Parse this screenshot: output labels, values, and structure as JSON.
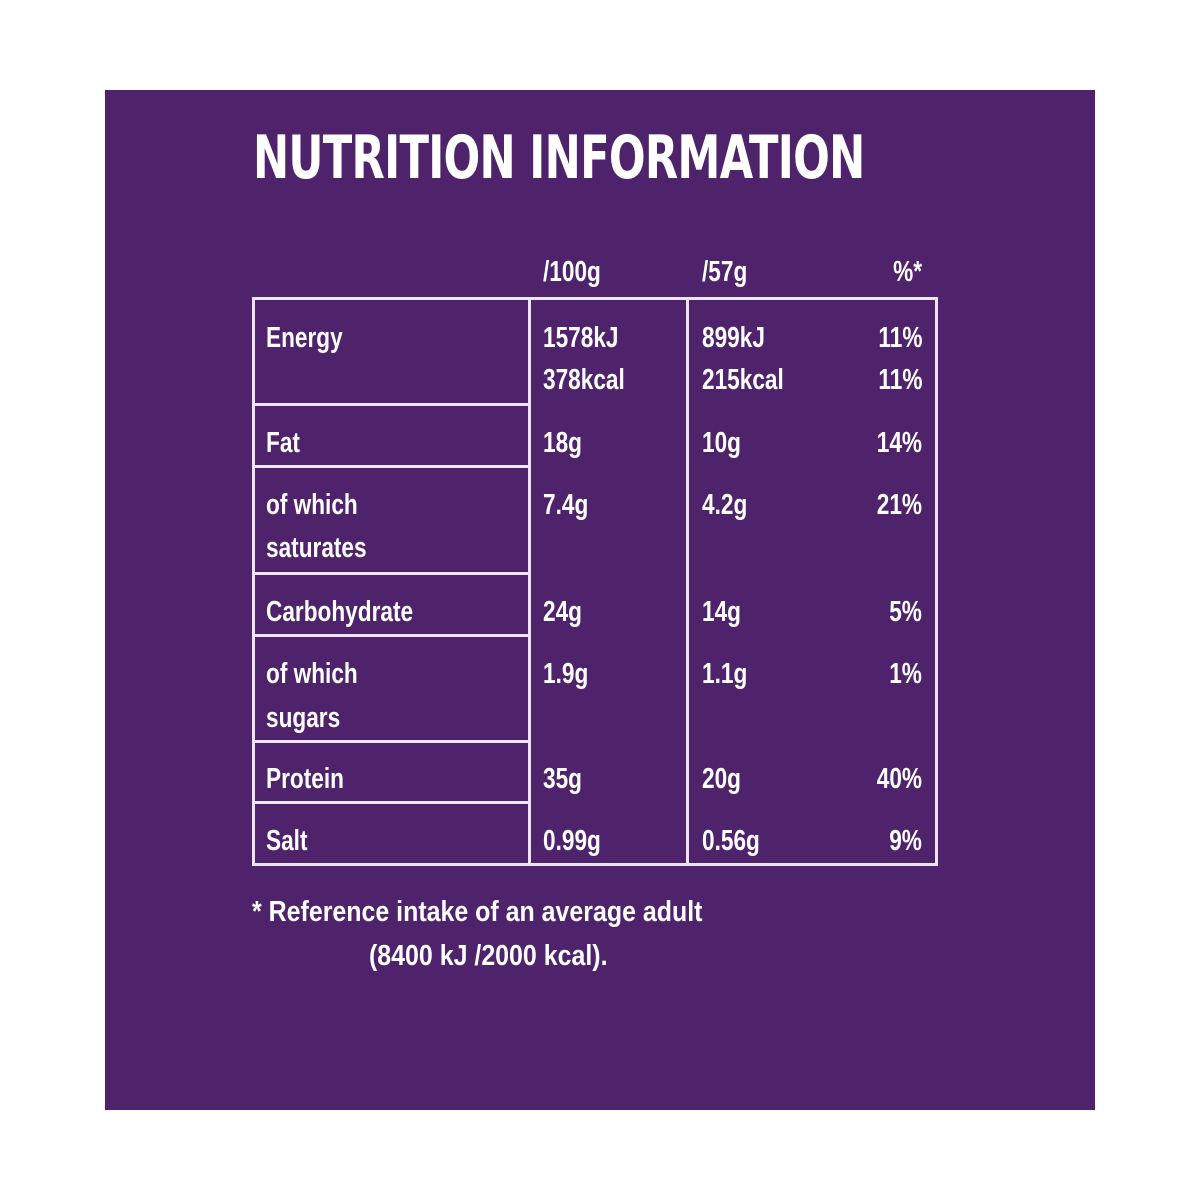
{
  "title": "NUTRITION INFORMATION",
  "columns": [
    "/100g",
    "/57g",
    "%*"
  ],
  "rows": [
    {
      "label": "Energy",
      "label2": "",
      "per100": "1578kJ",
      "per100_2": "378kcal",
      "perServe": "899kJ",
      "perServe_2": "215kcal",
      "ri": "11%",
      "ri_2": "11%"
    },
    {
      "label": "Fat",
      "per100": "18g",
      "perServe": "10g",
      "ri": "14%"
    },
    {
      "label": "of which",
      "label2": "saturates",
      "per100": "7.4g",
      "perServe": "4.2g",
      "ri": "21%"
    },
    {
      "label": "Carbohydrate",
      "per100": "24g",
      "perServe": "14g",
      "ri": "5%"
    },
    {
      "label": "of which",
      "label2": "sugars",
      "per100": "1.9g",
      "perServe": "1.1g",
      "ri": "1%"
    },
    {
      "label": "Protein",
      "per100": "35g",
      "perServe": "20g",
      "ri": "40%"
    },
    {
      "label": "Salt",
      "per100": "0.99g",
      "perServe": "0.56g",
      "ri": "9%"
    }
  ],
  "footnote": {
    "line1": "* Reference intake of an average adult",
    "line2": "(8400 kJ /2000 kcal)."
  },
  "colors": {
    "background": "#4e236b",
    "text": "#ffffff",
    "rules": "#ece5f1"
  }
}
